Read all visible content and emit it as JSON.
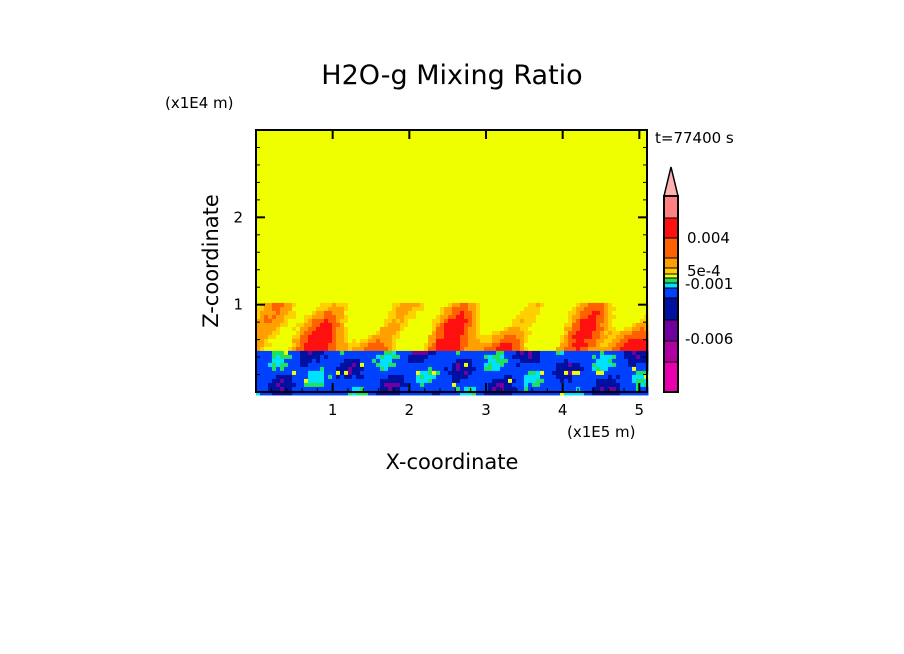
{
  "chart_data": {
    "type": "heatmap",
    "title": "H2O-g Mixing Ratio",
    "xlabel": "X-coordinate",
    "ylabel": "Z-coordinate",
    "x_unit": "(x1E5 m)",
    "y_unit": "(x1E4 m)",
    "time_label": "t=77400 s",
    "xlim": [
      0,
      5.1
    ],
    "ylim": [
      0,
      3.0
    ],
    "xticks": [
      1,
      2,
      3,
      4,
      5
    ],
    "xtick_labels": [
      "1",
      "2",
      "3",
      "4",
      "5"
    ],
    "yticks": [
      1,
      2
    ],
    "ytick_labels": [
      "1",
      "2"
    ],
    "background_color": "#f0ff00",
    "layers": [
      {
        "name": "upper uniform",
        "z_range": [
          1.0,
          3.0
        ],
        "color": "#f0ff00"
      },
      {
        "name": "mixed plumes",
        "z_range": [
          0.5,
          1.0
        ],
        "colors": [
          "#f0ff00",
          "#ffd000",
          "#ffa000",
          "#ff6000",
          "#ff1010"
        ]
      },
      {
        "name": "lower negative",
        "z_range": [
          0,
          0.5
        ],
        "colors": [
          "#0040ff",
          "#0010a0",
          "#00e0ff",
          "#20e060",
          "#7000a0",
          "#f0ff00"
        ]
      }
    ],
    "colorbar": {
      "extend": "max",
      "extend_color": "#ffb0b0",
      "colors": [
        "#ff8080",
        "#ff1010",
        "#ff6000",
        "#ffa000",
        "#ffd000",
        "#f0ff00",
        "#20e060",
        "#00e0ff",
        "#0040ff",
        "#0010a0",
        "#7000a0",
        "#b000a0",
        "#e800b0"
      ],
      "tick_labels": [
        {
          "label": "0.004",
          "band": 2
        },
        {
          "label": "5e-4",
          "band": 4.5
        },
        {
          "label": "-0.001",
          "band": 7.2
        },
        {
          "label": "-0.006",
          "band": 10.9
        }
      ]
    }
  }
}
